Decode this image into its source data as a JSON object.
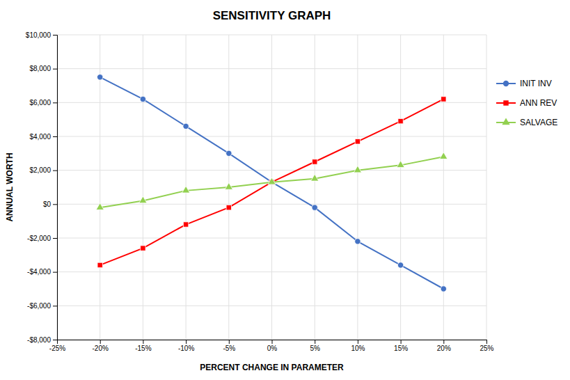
{
  "chart_data": {
    "type": "line",
    "title": "SENSITIVITY GRAPH",
    "xlabel": "PERCENT CHANGE IN PARAMETER",
    "ylabel": "ANNUAL WORTH",
    "x": [
      -0.2,
      -0.15,
      -0.1,
      -0.05,
      0.0,
      0.05,
      0.1,
      0.15,
      0.2
    ],
    "series": [
      {
        "name": "INIT INV",
        "color": "#4472C4",
        "marker": "circle",
        "values": [
          7500,
          6200,
          4600,
          3000,
          1300,
          -200,
          -2200,
          -3600,
          -5000
        ]
      },
      {
        "name": "ANN REV",
        "color": "#FF0000",
        "marker": "square",
        "values": [
          -3600,
          -2600,
          -1200,
          -200,
          1300,
          2500,
          3700,
          4900,
          6200
        ]
      },
      {
        "name": "SALVAGE",
        "color": "#92D050",
        "marker": "triangle",
        "values": [
          -200,
          200,
          800,
          1000,
          1300,
          1500,
          2000,
          2300,
          2800
        ]
      }
    ],
    "xlim": [
      -0.25,
      0.25
    ],
    "xticks": [
      {
        "value": -0.25,
        "label": "-25%"
      },
      {
        "value": -0.2,
        "label": "-20%"
      },
      {
        "value": -0.15,
        "label": "-15%"
      },
      {
        "value": -0.1,
        "label": "-10%"
      },
      {
        "value": -0.05,
        "label": "-5%"
      },
      {
        "value": 0.0,
        "label": "0%"
      },
      {
        "value": 0.05,
        "label": "5%"
      },
      {
        "value": 0.1,
        "label": "10%"
      },
      {
        "value": 0.15,
        "label": "15%"
      },
      {
        "value": 0.2,
        "label": "20%"
      },
      {
        "value": 0.25,
        "label": "25%"
      }
    ],
    "ylim": [
      -8000,
      10000
    ],
    "yticks": [
      {
        "value": -8000,
        "label": "-$8,000"
      },
      {
        "value": -6000,
        "label": "-$6,000"
      },
      {
        "value": -4000,
        "label": "-$4,000"
      },
      {
        "value": -2000,
        "label": "-$2,000"
      },
      {
        "value": 0,
        "label": "$0"
      },
      {
        "value": 2000,
        "label": "$2,000"
      },
      {
        "value": 4000,
        "label": "$4,000"
      },
      {
        "value": 6000,
        "label": "$6,000"
      },
      {
        "value": 8000,
        "label": "$8,000"
      },
      {
        "value": 10000,
        "label": "$10,000"
      }
    ],
    "grid": true,
    "legend": "right"
  }
}
